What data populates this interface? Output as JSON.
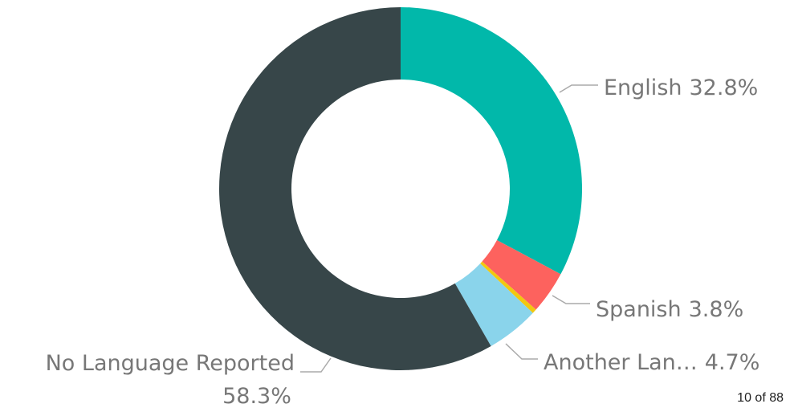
{
  "chart_data": {
    "type": "donut",
    "categories": [
      "English",
      "Spanish",
      null,
      "Another Lan…",
      "No Language Reported"
    ],
    "values": [
      32.8,
      3.8,
      0.4,
      4.7,
      58.3
    ],
    "value_labels": [
      "32.8%",
      "3.8%",
      null,
      "4.7%",
      "58.3%"
    ],
    "colors": [
      "#01B8AA",
      "#FD625E",
      "#F2C80F",
      "#8AD4EB",
      "#374649"
    ]
  },
  "page_indicator": "10 of 88"
}
